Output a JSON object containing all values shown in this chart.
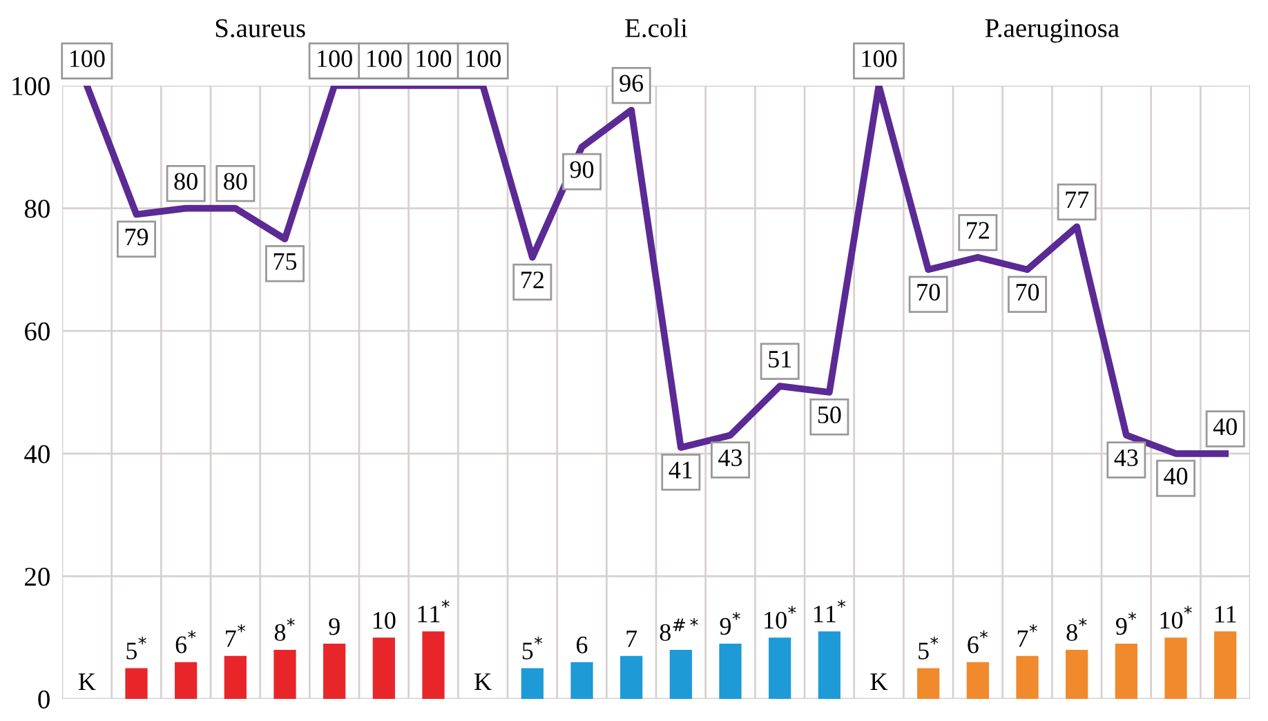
{
  "chart_data": {
    "type": "bar",
    "categories": [
      "K",
      "5$^{*}$",
      "6$^{*}$",
      "7$^{*}$",
      "8$^{*}$",
      "9",
      "10",
      "11$^{*}$",
      "K",
      "5$^{*}$",
      "6",
      "7",
      "8$^{#*}$",
      "9$^{*}$",
      "10$^{*}$",
      "11$^{*}$",
      "K",
      "5$^{*}$",
      "6$^{*}$",
      "7$^{*}$",
      "8$^{*}$",
      "9$^{*}$",
      "10$^{*}$",
      "11"
    ],
    "series": [
      {
        "values": [
          0,
          5,
          6,
          7,
          8,
          9,
          10,
          11,
          0,
          5,
          6,
          7,
          8,
          9,
          10,
          11,
          0,
          5,
          6,
          7,
          8,
          9,
          10,
          11
        ],
        "colors": [
          "#e8262a",
          "#e8262a",
          "#e8262a",
          "#e8262a",
          "#e8262a",
          "#e8262a",
          "#e8262a",
          "#e8262a",
          "#1e9ad6",
          "#1e9ad6",
          "#1e9ad6",
          "#1e9ad6",
          "#1e9ad6",
          "#1e9ad6",
          "#1e9ad6",
          "#1e9ad6",
          "#f08a2c",
          "#f08a2c",
          "#f08a2c",
          "#f08a2c",
          "#f08a2c",
          "#f08a2c",
          "#f08a2c",
          "#f08a2c"
        ]
      },
      {
        "type": "line",
        "color": "#5b2a94",
        "data_labels": true,
        "values": [
          100,
          79,
          80,
          80,
          75,
          100,
          100,
          100,
          100,
          72,
          90,
          96,
          41,
          43,
          51,
          50,
          100,
          70,
          72,
          70,
          77,
          43,
          40,
          40
        ]
      }
    ],
    "annotations": [
      "S.aureus",
      "E.coli",
      "P.aeruginosa"
    ],
    "ylim": [
      0,
      100
    ],
    "yticks": [
      0,
      20,
      40,
      60,
      80,
      100
    ],
    "grid": true,
    "marker": "none",
    "line_style": "solid"
  }
}
